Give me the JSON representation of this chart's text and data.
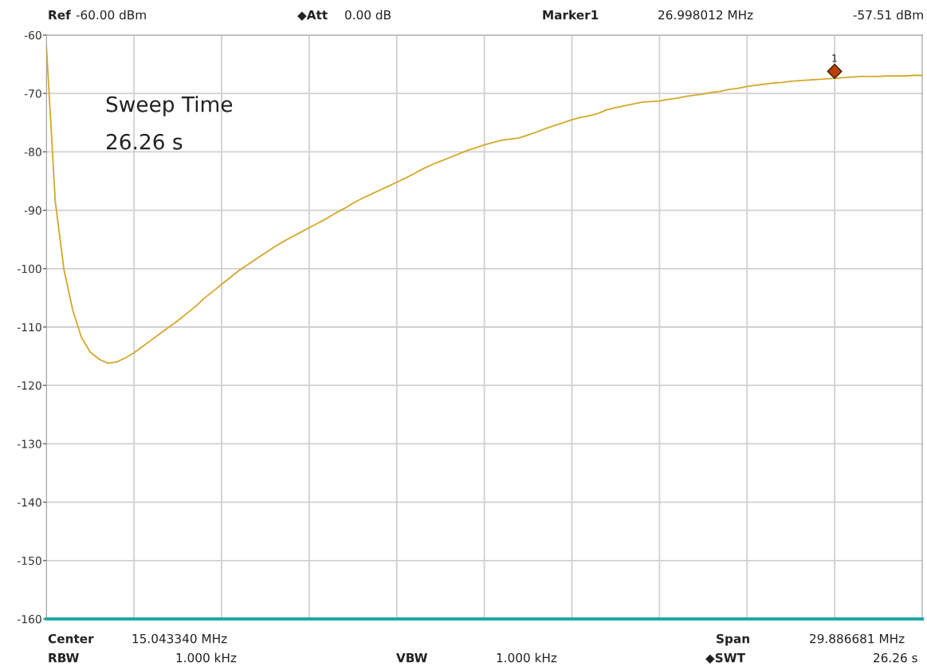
{
  "chart_data": {
    "type": "line",
    "categories": [
      null,
      null,
      null,
      null,
      null,
      null,
      null,
      null,
      null,
      null,
      null,
      null,
      null,
      null,
      null,
      null,
      null,
      null,
      null,
      null,
      null,
      null,
      null,
      null,
      null,
      null,
      null,
      null,
      null,
      null,
      null,
      null,
      null,
      null,
      null,
      null,
      null,
      null,
      null,
      null,
      null,
      null,
      null,
      null,
      null,
      null,
      null,
      null,
      null,
      null,
      null,
      null,
      null,
      null,
      null,
      null,
      null,
      null,
      null,
      null,
      null,
      null,
      null,
      null,
      null,
      null,
      null,
      null,
      null,
      null,
      null,
      null,
      null,
      null,
      null,
      null,
      null,
      null,
      null,
      null,
      null,
      null,
      null,
      null,
      null,
      null,
      null,
      null,
      null,
      null,
      null,
      null,
      null,
      null,
      null,
      null,
      null,
      null,
      null,
      null,
      null
    ],
    "series": [
      {
        "color": "#d4a82a",
        "values": [
          -62,
          -88.4,
          -100.2,
          -107.1,
          -111.8,
          -114.3,
          -115.5,
          -116.2,
          -116.0,
          -115.3,
          -114.4,
          -113.3,
          -112.2,
          -111.1,
          -110.0,
          -108.9,
          -107.7,
          -106.5,
          -105.1,
          -103.9,
          -102.7,
          -101.5,
          -100.3,
          -99.3,
          -98.3,
          -97.3,
          -96.3,
          -95.4,
          -94.6,
          -93.8,
          -93.0,
          -92.2,
          -91.4,
          -90.5,
          -89.7,
          -88.8,
          -88.0,
          -87.3,
          -86.6,
          -85.9,
          -85.2,
          -84.5,
          -83.7,
          -82.9,
          -82.2,
          -81.6,
          -81.0,
          -80.4,
          -79.8,
          -79.3,
          -78.8,
          -78.4,
          -78.0,
          -77.8,
          -77.6,
          -77.1,
          -76.6,
          -76.0,
          -75.5,
          -75.0,
          -74.5,
          -74.1,
          -73.8,
          -73.4,
          -72.8,
          -72.4,
          -72.1,
          -71.8,
          -71.5,
          -71.4,
          -71.3,
          -71.0,
          -70.8,
          -70.5,
          -70.3,
          -70.1,
          -69.8,
          -69.6,
          -69.3,
          -69.1,
          -68.8,
          -68.6,
          -68.4,
          -68.2,
          -68.1,
          -67.9,
          -67.8,
          -67.7,
          -67.6,
          -67.5,
          -67.4,
          -67.3,
          -67.2,
          -67.1,
          -67.1,
          -67.1,
          -67.0,
          -67.0,
          -67.0,
          -66.9,
          -66.9
        ]
      }
    ],
    "ylim": [
      -160,
      -60
    ],
    "yticks": [
      -160,
      -150,
      -140,
      -130,
      -120,
      -110,
      -100,
      -90,
      -80,
      -70,
      -60
    ],
    "grid": true,
    "ref_lines": [
      {
        "axis": "y",
        "value": -160,
        "color": "#1fa8a8"
      }
    ],
    "annotations": [
      "Ref",
      "-60.00 dBm",
      "◆Att",
      "0.00 dB",
      "Marker1",
      "26.998012 MHz",
      "-57.51 dBm",
      "Sweep Time",
      "26.26 s",
      "1",
      "Center",
      "15.043340 MHz",
      "Span",
      "29.886681 MHz",
      "RBW",
      "1.000 kHz",
      "VBW",
      "1.000 kHz",
      "◆SWT",
      "26.26 s"
    ]
  }
}
